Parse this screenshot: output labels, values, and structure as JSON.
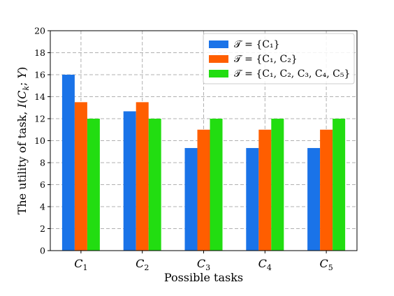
{
  "chart_data": {
    "type": "bar",
    "xlabel": "Possible tasks",
    "ylabel": "The utility of task, I(C_k; Y)",
    "ylim": [
      0,
      20
    ],
    "yticks": [
      0,
      2,
      4,
      6,
      8,
      10,
      12,
      14,
      16,
      18,
      20
    ],
    "grid": true,
    "legend_position": "top-right",
    "categories": [
      {
        "base": "C",
        "sub": "1"
      },
      {
        "base": "C",
        "sub": "2"
      },
      {
        "base": "C",
        "sub": "3"
      },
      {
        "base": "C",
        "sub": "4"
      },
      {
        "base": "C",
        "sub": "5"
      }
    ],
    "series": [
      {
        "name": "𝒯 = {C₁}",
        "color": "#1a73e8",
        "values": [
          16.0,
          12.67,
          9.33,
          9.33,
          9.33
        ]
      },
      {
        "name": "𝒯 = {C₁, C₂}",
        "color": "#ff5e00",
        "values": [
          13.5,
          13.5,
          11.0,
          11.0,
          11.0
        ]
      },
      {
        "name": "𝒯 = {C₁, C₂, C₃, C₄, C₅}",
        "color": "#22dd11",
        "values": [
          12.0,
          12.0,
          12.0,
          12.0,
          12.0
        ]
      }
    ]
  }
}
